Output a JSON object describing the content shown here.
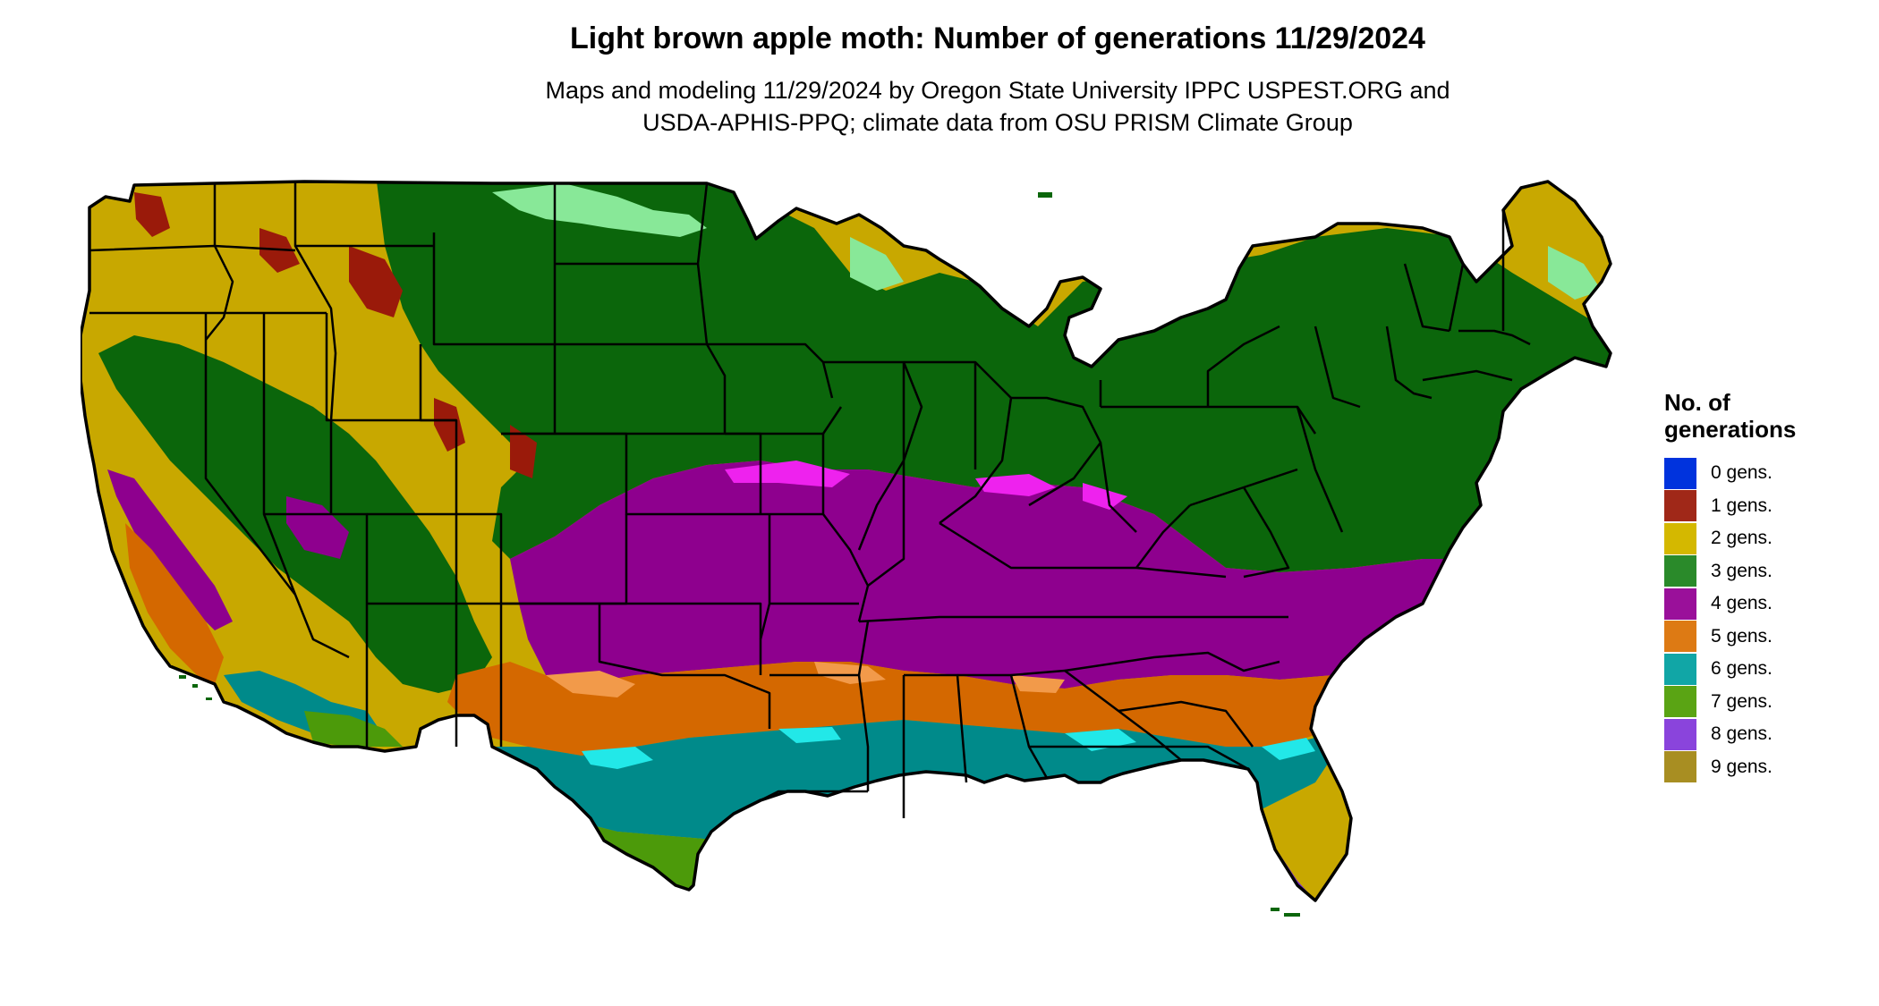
{
  "title": "Light brown apple moth: Number of generations 11/29/2024",
  "subtitle_line1": "Maps and modeling 11/29/2024 by Oregon State University IPPC USPEST.ORG and",
  "subtitle_line2": "USDA-APHIS-PPQ; climate data from OSU PRISM Climate Group",
  "legend": {
    "title_line1": "No. of",
    "title_line2": "generations",
    "items": [
      {
        "label": "0 gens.",
        "color": "#0033dd"
      },
      {
        "label": "1 gens.",
        "color": "#a02818"
      },
      {
        "label": "2 gens.",
        "color": "#d4b800"
      },
      {
        "label": "3 gens.",
        "color": "#2a8a2a"
      },
      {
        "label": "4 gens.",
        "color": "#9a109a"
      },
      {
        "label": "5 gens.",
        "color": "#dd7a14"
      },
      {
        "label": "6 gens.",
        "color": "#11a6a6"
      },
      {
        "label": "7 gens.",
        "color": "#5aa414"
      },
      {
        "label": "8 gens.",
        "color": "#8a44dc"
      },
      {
        "label": "9 gens.",
        "color": "#a88e22"
      }
    ]
  },
  "map_colors": {
    "gen2": "#c8a800",
    "gen3": "#0b660b",
    "gen3_light": "#88e898",
    "gen4": "#8e008e",
    "gen4_light": "#ee22ee",
    "gen5": "#d46800",
    "gen5_light": "#f29a4a",
    "gen6": "#008a8a",
    "gen6_light": "#22e8e8",
    "gen7": "#4c9a0a",
    "gen7_light": "#c4f22a",
    "gen8": "#7a2ad2",
    "gen1": "#9a1a0a",
    "outline": "#000000"
  }
}
